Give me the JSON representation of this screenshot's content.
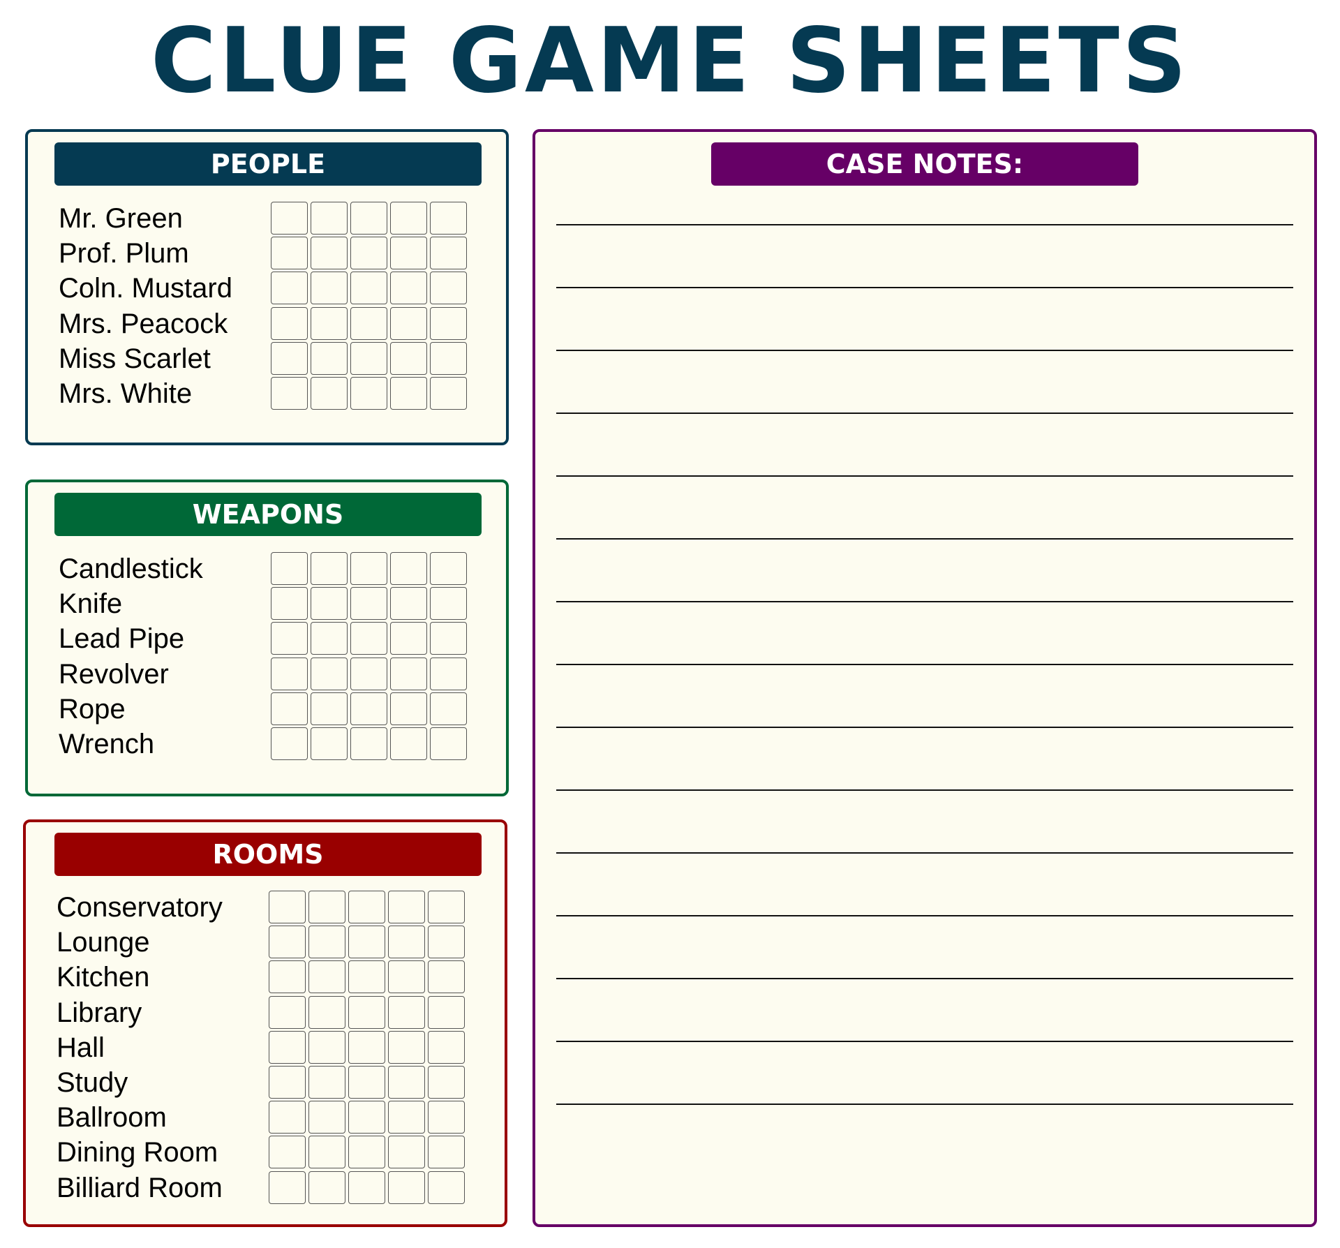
{
  "title": "CLUE GAME SHEETS",
  "colors": {
    "people": "#053a52",
    "weapons": "#006837",
    "rooms": "#990000",
    "notes": "#660066",
    "paper": "#fdfcf0"
  },
  "people": {
    "heading": "PEOPLE",
    "items": [
      "Mr. Green",
      "Prof. Plum",
      "Coln. Mustard",
      "Mrs. Peacock",
      "Miss Scarlet",
      "Mrs. White"
    ]
  },
  "weapons": {
    "heading": "WEAPONS",
    "items": [
      "Candlestick",
      "Knife",
      "Lead Pipe",
      "Revolver",
      "Rope",
      "Wrench"
    ]
  },
  "rooms": {
    "heading": "ROOMS",
    "items": [
      "Conservatory",
      "Lounge",
      "Kitchen",
      "Library",
      "Hall",
      "Study",
      "Ballroom",
      "Dining Room",
      "Billiard Room"
    ]
  },
  "notes": {
    "heading": "CASE NOTES:",
    "line_count": 15
  },
  "checkbox_columns": 5
}
